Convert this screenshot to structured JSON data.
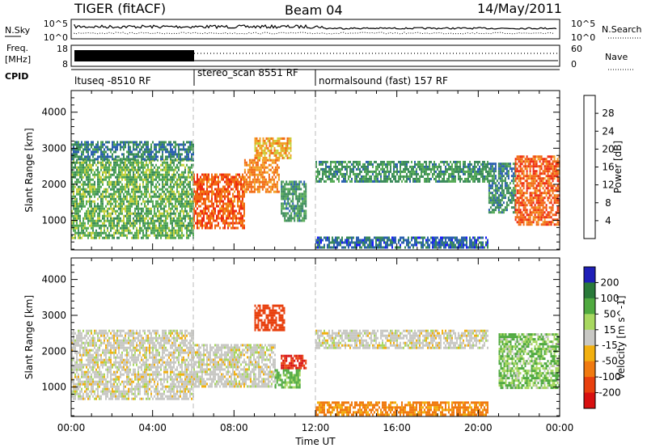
{
  "header": {
    "radar": "TIGER (fitACF)",
    "beam": "Beam 04",
    "date": "14/May/2011"
  },
  "noise_panel": {
    "left_label": "N.Sky",
    "left_ticks": [
      "10^5",
      "10^0"
    ],
    "right_ticks": [
      "10^5",
      "10^0"
    ],
    "right_label": "N.Search"
  },
  "freq_panel": {
    "left_label_1": "Freq.",
    "left_label_2": "[MHz]",
    "left_ticks": [
      "18",
      "8"
    ],
    "right_ticks": [
      "60",
      "0"
    ],
    "right_label": "Nave"
  },
  "cpid": {
    "label": "CPID",
    "segments": [
      "ltuseq -8510 RF",
      "stereo_scan 8551 RF",
      "normalsound (fast) 157 RF"
    ]
  },
  "colors": {
    "power": [
      "#1a1aff",
      "#2a5fb0",
      "#3a8a5a",
      "#55aa55",
      "#c8d23c",
      "#f2a024",
      "#f26a14",
      "#ee2a10"
    ],
    "velocity": [
      "#1f1fb8",
      "#2a7a3a",
      "#50aa40",
      "#a8d860",
      "#c8c8c4",
      "#f2b010",
      "#f07a10",
      "#e8400e",
      "#d81010"
    ]
  },
  "chart_data": [
    {
      "type": "heatmap",
      "title": "Power",
      "ylabel": "Slant Range [km]",
      "xlabel": "Time UT",
      "x_ticks": [
        "00:00",
        "04:00",
        "08:00",
        "12:00",
        "16:00",
        "20:00",
        "00:00"
      ],
      "xlim": [
        0,
        24
      ],
      "y_ticks": [
        1000,
        2000,
        3000,
        4000
      ],
      "ylim": [
        180,
        4600
      ],
      "colorbar": {
        "label": "Power [dB]",
        "ticks": [
          4,
          8,
          12,
          16,
          20,
          24,
          28
        ],
        "range": [
          0,
          32
        ]
      },
      "regions": [
        {
          "t0": 0.0,
          "t1": 6.0,
          "r0": 500,
          "r1": 2700,
          "value": 14
        },
        {
          "t0": 0.0,
          "t1": 6.0,
          "r0": 2700,
          "r1": 3200,
          "value": 9
        },
        {
          "t0": 6.0,
          "t1": 8.5,
          "r0": 800,
          "r1": 2300,
          "value": 27
        },
        {
          "t0": 8.5,
          "t1": 10.2,
          "r0": 1800,
          "r1": 2700,
          "value": 24
        },
        {
          "t0": 9.0,
          "t1": 10.8,
          "r0": 2700,
          "r1": 3300,
          "value": 22
        },
        {
          "t0": 10.3,
          "t1": 11.5,
          "r0": 1000,
          "r1": 2100,
          "value": 11
        },
        {
          "t0": 12.0,
          "t1": 20.5,
          "r0": 2100,
          "r1": 2650,
          "value": 11
        },
        {
          "t0": 12.0,
          "t1": 20.5,
          "r0": 250,
          "r1": 550,
          "value": 7
        },
        {
          "t0": 20.5,
          "t1": 21.8,
          "r0": 1200,
          "r1": 2600,
          "value": 10
        },
        {
          "t0": 21.8,
          "t1": 24.0,
          "r0": 900,
          "r1": 2800,
          "value": 27
        }
      ]
    },
    {
      "type": "heatmap",
      "title": "Velocity",
      "ylabel": "Slant Range [km]",
      "xlabel": "Time UT",
      "x_ticks": [
        "00:00",
        "04:00",
        "08:00",
        "12:00",
        "16:00",
        "20:00",
        "00:00"
      ],
      "xlim": [
        0,
        24
      ],
      "y_ticks": [
        1000,
        2000,
        3000,
        4000
      ],
      "ylim": [
        180,
        4600
      ],
      "colorbar": {
        "label": "Velocity [m s^-1]",
        "ticks": [
          200,
          100,
          50,
          15,
          -15,
          -50,
          -100,
          -200
        ]
      },
      "regions": [
        {
          "t0": 0.0,
          "t1": 6.0,
          "r0": 700,
          "r1": 2600,
          "value": 0
        },
        {
          "t0": 6.0,
          "t1": 10.0,
          "r0": 1000,
          "r1": 2200,
          "value": 0
        },
        {
          "t0": 9.0,
          "t1": 10.5,
          "r0": 2600,
          "r1": 3300,
          "value": -120
        },
        {
          "t0": 10.3,
          "t1": 11.5,
          "r0": 1500,
          "r1": 1900,
          "value": -150
        },
        {
          "t0": 10.0,
          "t1": 11.2,
          "r0": 1000,
          "r1": 1500,
          "value": 40
        },
        {
          "t0": 12.0,
          "t1": 20.5,
          "r0": 2100,
          "r1": 2600,
          "value": 0
        },
        {
          "t0": 12.0,
          "t1": 20.5,
          "r0": 250,
          "r1": 600,
          "value": -40
        },
        {
          "t0": 21.0,
          "t1": 24.0,
          "r0": 1000,
          "r1": 2500,
          "value": 30
        }
      ]
    }
  ],
  "xlabel": "Time UT"
}
